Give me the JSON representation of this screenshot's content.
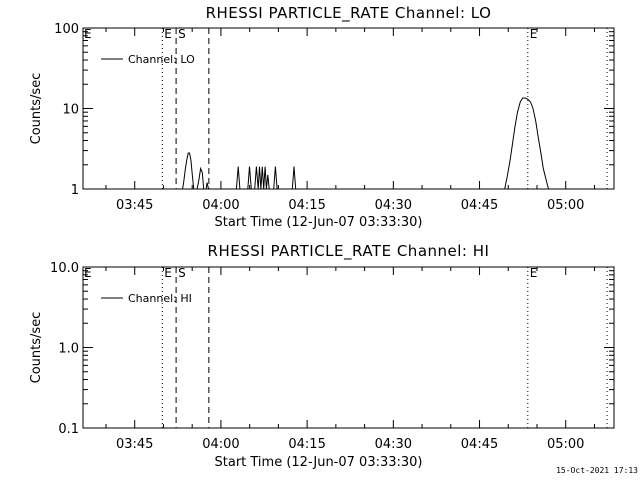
{
  "footer": {
    "timestamp": "15-Oct-2021 17:13"
  },
  "chart_data": [
    {
      "type": "line",
      "title": "RHESSI PARTICLE_RATE Channel: LO",
      "xlabel": "Start Time (12-Jun-07 03:33:30)",
      "ylabel": "Counts/sec",
      "yscale": "log",
      "xlim": [
        3.6,
        5.14
      ],
      "ylim": [
        1,
        100
      ],
      "x_unit": "hours (UT)",
      "xticks": [
        {
          "value": 3.75,
          "label": "03:45"
        },
        {
          "value": 4.0,
          "label": "04:00"
        },
        {
          "value": 4.25,
          "label": "04:15"
        },
        {
          "value": 4.5,
          "label": "04:30"
        },
        {
          "value": 4.75,
          "label": "04:45"
        },
        {
          "value": 5.0,
          "label": "05:00"
        }
      ],
      "yticks": [
        {
          "value": 1,
          "label": "1"
        },
        {
          "value": 10,
          "label": "10"
        },
        {
          "value": 100,
          "label": "100"
        }
      ],
      "legend": {
        "label": "Channel: LO",
        "placement": "top-left"
      },
      "series": [
        {
          "name": "Channel: LO",
          "x": [
            3.889,
            3.893,
            3.897,
            3.901,
            3.905,
            3.909,
            3.913,
            3.917,
            3.921,
            3.925,
            3.928,
            3.931,
            3.936,
            3.941,
            3.946,
            3.95,
            3.954,
            3.957,
            3.96,
            3.964,
            4.045,
            4.05,
            4.055,
            4.078,
            4.083,
            4.088,
            4.098,
            4.103,
            4.108,
            4.112,
            4.116,
            4.12,
            4.124,
            4.128,
            4.132,
            4.136,
            4.14,
            4.153,
            4.158,
            4.163,
            4.207,
            4.212,
            4.217,
            4.823,
            4.83,
            4.838,
            4.845,
            4.853,
            4.86,
            4.868,
            4.875,
            4.883,
            4.89,
            4.898,
            4.905,
            4.913,
            4.92,
            4.928,
            4.935,
            4.943,
            4.95,
            4.958,
            4.965,
            4.97
          ],
          "values": [
            1,
            1.3,
            1.8,
            2.3,
            2.8,
            2.8,
            2.3,
            1.5,
            1,
            1,
            1,
            1,
            1.3,
            1.8,
            1.6,
            1,
            1,
            1,
            1.2,
            1,
            1,
            1.9,
            1,
            1,
            1.9,
            1,
            1,
            1.9,
            1,
            1.9,
            1,
            1.9,
            1,
            1.9,
            1,
            1.5,
            1,
            1,
            1.9,
            1,
            1,
            1.9,
            1,
            1,
            1.4,
            2.2,
            3.5,
            6,
            9,
            12,
            13.5,
            13.5,
            13,
            12,
            10,
            7,
            4.5,
            2.8,
            1.8,
            1.3,
            1,
            1,
            1,
            1
          ]
        }
      ],
      "markers": [
        {
          "x": 3.83,
          "style": "dotted",
          "label": "E"
        },
        {
          "x": 3.87,
          "style": "dashed",
          "label": "S"
        },
        {
          "x": 3.965,
          "style": "dashed",
          "label": ""
        },
        {
          "x": 4.89,
          "style": "dotted",
          "label": "E"
        },
        {
          "x": 5.12,
          "style": "dotted",
          "label": ""
        }
      ],
      "corner_label": "E"
    },
    {
      "type": "line",
      "title": "RHESSI PARTICLE_RATE Channel: HI",
      "xlabel": "Start Time (12-Jun-07 03:33:30)",
      "ylabel": "Counts/sec",
      "yscale": "log",
      "xlim": [
        3.6,
        5.14
      ],
      "ylim": [
        0.1,
        10
      ],
      "x_unit": "hours (UT)",
      "xticks": [
        {
          "value": 3.75,
          "label": "03:45"
        },
        {
          "value": 4.0,
          "label": "04:00"
        },
        {
          "value": 4.25,
          "label": "04:15"
        },
        {
          "value": 4.5,
          "label": "04:30"
        },
        {
          "value": 4.75,
          "label": "04:45"
        },
        {
          "value": 5.0,
          "label": "05:00"
        }
      ],
      "yticks": [
        {
          "value": 0.1,
          "label": "0.1"
        },
        {
          "value": 1,
          "label": "1.0"
        },
        {
          "value": 10,
          "label": "10.0"
        }
      ],
      "legend": {
        "label": "Channel: HI",
        "placement": "top-left"
      },
      "series": [
        {
          "name": "Channel: HI",
          "x": [],
          "values": []
        }
      ],
      "markers": [
        {
          "x": 3.83,
          "style": "dotted",
          "label": "E"
        },
        {
          "x": 3.87,
          "style": "dashed",
          "label": "S"
        },
        {
          "x": 3.965,
          "style": "dashed",
          "label": ""
        },
        {
          "x": 4.89,
          "style": "dotted",
          "label": "E"
        },
        {
          "x": 5.12,
          "style": "dotted",
          "label": ""
        }
      ],
      "corner_label": "E"
    }
  ]
}
